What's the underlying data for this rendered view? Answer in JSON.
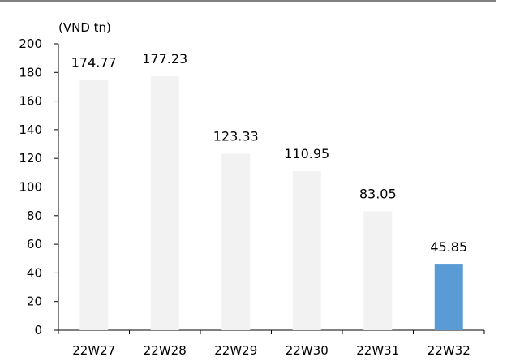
{
  "chart_data": {
    "type": "bar",
    "unit_label": "(VND tn)",
    "categories": [
      "22W27",
      "22W28",
      "22W29",
      "22W30",
      "22W31",
      "22W32"
    ],
    "values": [
      174.77,
      177.23,
      123.33,
      110.95,
      83.05,
      45.85
    ],
    "data_labels": [
      "174.77",
      "177.23",
      "123.33",
      "110.95",
      "83.05",
      "45.85"
    ],
    "ylim": [
      0,
      200
    ],
    "yticks": [
      0,
      20,
      40,
      60,
      80,
      100,
      120,
      140,
      160,
      180,
      200
    ],
    "ytick_labels": [
      "0",
      "20",
      "40",
      "60",
      "80",
      "100",
      "120",
      "140",
      "160",
      "180",
      "200"
    ],
    "grid": false,
    "colors": {
      "default_bar": "#f2f2f2",
      "highlight_bar": "#5b9bd5",
      "axis": "#000000"
    },
    "highlight_index": 5
  }
}
